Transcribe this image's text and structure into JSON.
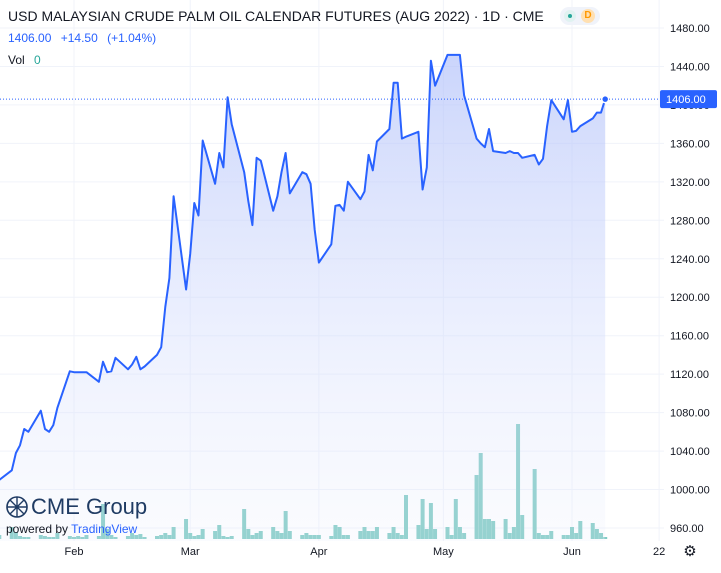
{
  "header": {
    "title": "USD MALAYSIAN CRUDE PALM OIL CALENDAR FUTURES (AUG 2022)",
    "interval": "1D",
    "exchange": "CME",
    "separator": "·",
    "market_status_badge": "D"
  },
  "quote": {
    "last": "1406.00",
    "change": "+14.50",
    "change_pct": "(+1.04%)"
  },
  "volume_legend": {
    "label": "Vol",
    "value": "0"
  },
  "price_tag": "1406.00",
  "branding": {
    "logo": "CME Group",
    "powered_by": "powered by",
    "platform": "TradingView"
  },
  "colors": {
    "line": "#2962ff",
    "area_top": "#aebefa",
    "volume": "#80cbc4",
    "price_tag_bg": "#2962ff",
    "grid": "#f0f3fa",
    "change": "#2962ff",
    "badge": "#ff9800"
  },
  "icons": {
    "settings": "gear-icon",
    "market_open": "dot-icon",
    "logo_mark": "cme-globe-icon"
  },
  "chart_data": {
    "type": "area",
    "title": "USD MALAYSIAN CRUDE PALM OIL CALENDAR FUTURES (AUG 2022)",
    "xlabel": "",
    "ylabel": "",
    "ylim": [
      945,
      1505
    ],
    "y_ticks": [
      "1480.00",
      "1440.00",
      "1400.00",
      "1360.00",
      "1320.00",
      "1280.00",
      "1240.00",
      "1200.00",
      "1160.00",
      "1120.00",
      "1080.00",
      "1040.00",
      "1000.00",
      "960.00"
    ],
    "y_tick_values": [
      1480,
      1440,
      1400,
      1360,
      1320,
      1280,
      1240,
      1200,
      1160,
      1120,
      1080,
      1040,
      1000,
      960
    ],
    "x_ticks": [
      "Feb",
      "Mar",
      "Apr",
      "May",
      "Jun",
      "22"
    ],
    "x_tick_dates": [
      "2022-02-01",
      "2022-03-01",
      "2022-04-01",
      "2022-05-01",
      "2022-06-01",
      "2022-06-22"
    ],
    "x_range": [
      "2022-01-13",
      "2022-06-24"
    ],
    "current_price": 1406.0,
    "grid": true,
    "series": [
      {
        "values": [
          [
            "2022-01-13",
            1015
          ],
          [
            "2022-01-14",
            1010
          ],
          [
            "2022-01-17",
            1020
          ],
          [
            "2022-01-18",
            1038
          ],
          [
            "2022-01-19",
            1046
          ],
          [
            "2022-01-20",
            1063
          ],
          [
            "2022-01-21",
            1060
          ],
          [
            "2022-01-24",
            1082
          ],
          [
            "2022-01-25",
            1063
          ],
          [
            "2022-01-26",
            1060
          ],
          [
            "2022-01-27",
            1067
          ],
          [
            "2022-01-28",
            1085
          ],
          [
            "2022-01-31",
            1123
          ],
          [
            "2022-02-01",
            1122
          ],
          [
            "2022-02-02",
            1122
          ],
          [
            "2022-02-03",
            1122
          ],
          [
            "2022-02-04",
            1122
          ],
          [
            "2022-02-07",
            1112
          ],
          [
            "2022-02-08",
            1133
          ],
          [
            "2022-02-09",
            1122
          ],
          [
            "2022-02-10",
            1123
          ],
          [
            "2022-02-11",
            1137
          ],
          [
            "2022-02-14",
            1125
          ],
          [
            "2022-02-15",
            1130
          ],
          [
            "2022-02-16",
            1138
          ],
          [
            "2022-02-17",
            1125
          ],
          [
            "2022-02-18",
            1128
          ],
          [
            "2022-02-21",
            1140
          ],
          [
            "2022-02-22",
            1148
          ],
          [
            "2022-02-23",
            1190
          ],
          [
            "2022-02-24",
            1220
          ],
          [
            "2022-02-25",
            1305
          ],
          [
            "2022-02-28",
            1208
          ],
          [
            "2022-03-01",
            1245
          ],
          [
            "2022-03-02",
            1298
          ],
          [
            "2022-03-03",
            1285
          ],
          [
            "2022-03-04",
            1363
          ],
          [
            "2022-03-07",
            1318
          ],
          [
            "2022-03-08",
            1350
          ],
          [
            "2022-03-09",
            1335
          ],
          [
            "2022-03-10",
            1408
          ],
          [
            "2022-03-11",
            1380
          ],
          [
            "2022-03-14",
            1330
          ],
          [
            "2022-03-15",
            1300
          ],
          [
            "2022-03-16",
            1275
          ],
          [
            "2022-03-17",
            1345
          ],
          [
            "2022-03-18",
            1342
          ],
          [
            "2022-03-21",
            1290
          ],
          [
            "2022-03-22",
            1305
          ],
          [
            "2022-03-23",
            1330
          ],
          [
            "2022-03-24",
            1350
          ],
          [
            "2022-03-25",
            1308
          ],
          [
            "2022-03-28",
            1330
          ],
          [
            "2022-03-29",
            1328
          ],
          [
            "2022-03-30",
            1318
          ],
          [
            "2022-03-31",
            1270
          ],
          [
            "2022-04-01",
            1236
          ],
          [
            "2022-04-04",
            1255
          ],
          [
            "2022-04-05",
            1295
          ],
          [
            "2022-04-06",
            1296
          ],
          [
            "2022-04-07",
            1290
          ],
          [
            "2022-04-08",
            1320
          ],
          [
            "2022-04-11",
            1302
          ],
          [
            "2022-04-12",
            1310
          ],
          [
            "2022-04-13",
            1348
          ],
          [
            "2022-04-14",
            1332
          ],
          [
            "2022-04-15",
            1362
          ],
          [
            "2022-04-18",
            1375
          ],
          [
            "2022-04-19",
            1423
          ],
          [
            "2022-04-20",
            1423
          ],
          [
            "2022-04-21",
            1365
          ],
          [
            "2022-04-22",
            1367
          ],
          [
            "2022-04-25",
            1372
          ],
          [
            "2022-04-26",
            1312
          ],
          [
            "2022-04-27",
            1335
          ],
          [
            "2022-04-28",
            1446
          ],
          [
            "2022-04-29",
            1420
          ],
          [
            "2022-05-02",
            1452
          ],
          [
            "2022-05-03",
            1452
          ],
          [
            "2022-05-04",
            1452
          ],
          [
            "2022-05-05",
            1452
          ],
          [
            "2022-05-06",
            1410
          ],
          [
            "2022-05-09",
            1365
          ],
          [
            "2022-05-10",
            1360
          ],
          [
            "2022-05-11",
            1356
          ],
          [
            "2022-05-12",
            1375
          ],
          [
            "2022-05-13",
            1352
          ],
          [
            "2022-05-16",
            1350
          ],
          [
            "2022-05-17",
            1352
          ],
          [
            "2022-05-18",
            1350
          ],
          [
            "2022-05-19",
            1350
          ],
          [
            "2022-05-20",
            1345
          ],
          [
            "2022-05-23",
            1348
          ],
          [
            "2022-05-24",
            1338
          ],
          [
            "2022-05-25",
            1344
          ],
          [
            "2022-05-26",
            1378
          ],
          [
            "2022-05-27",
            1405
          ],
          [
            "2022-05-30",
            1385
          ],
          [
            "2022-05-31",
            1405
          ],
          [
            "2022-06-01",
            1372
          ],
          [
            "2022-06-02",
            1373
          ],
          [
            "2022-06-03",
            1378
          ],
          [
            "2022-06-06",
            1386
          ],
          [
            "2022-06-07",
            1392
          ],
          [
            "2022-06-08",
            1392
          ],
          [
            "2022-06-09",
            1406
          ]
        ]
      }
    ],
    "volume": {
      "values": [
        [
          "2022-01-13",
          8
        ],
        [
          "2022-01-14",
          4
        ],
        [
          "2022-01-17",
          12
        ],
        [
          "2022-01-18",
          7
        ],
        [
          "2022-01-19",
          3
        ],
        [
          "2022-01-20",
          2
        ],
        [
          "2022-01-21",
          2
        ],
        [
          "2022-01-24",
          4
        ],
        [
          "2022-01-25",
          3
        ],
        [
          "2022-01-26",
          2
        ],
        [
          "2022-01-27",
          2
        ],
        [
          "2022-01-28",
          6
        ],
        [
          "2022-01-31",
          3
        ],
        [
          "2022-02-01",
          2
        ],
        [
          "2022-02-02",
          3
        ],
        [
          "2022-02-03",
          2
        ],
        [
          "2022-02-04",
          4
        ],
        [
          "2022-02-07",
          3
        ],
        [
          "2022-02-08",
          35
        ],
        [
          "2022-02-09",
          10
        ],
        [
          "2022-02-10",
          4
        ],
        [
          "2022-02-11",
          2
        ],
        [
          "2022-02-14",
          3
        ],
        [
          "2022-02-15",
          6
        ],
        [
          "2022-02-16",
          4
        ],
        [
          "2022-02-17",
          5
        ],
        [
          "2022-02-18",
          2
        ],
        [
          "2022-02-21",
          3
        ],
        [
          "2022-02-22",
          4
        ],
        [
          "2022-02-23",
          6
        ],
        [
          "2022-02-24",
          4
        ],
        [
          "2022-02-25",
          12
        ],
        [
          "2022-02-28",
          20
        ],
        [
          "2022-03-01",
          6
        ],
        [
          "2022-03-02",
          3
        ],
        [
          "2022-03-03",
          4
        ],
        [
          "2022-03-04",
          10
        ],
        [
          "2022-03-07",
          8
        ],
        [
          "2022-03-08",
          14
        ],
        [
          "2022-03-09",
          3
        ],
        [
          "2022-03-10",
          2
        ],
        [
          "2022-03-11",
          3
        ],
        [
          "2022-03-14",
          30
        ],
        [
          "2022-03-15",
          10
        ],
        [
          "2022-03-16",
          4
        ],
        [
          "2022-03-17",
          6
        ],
        [
          "2022-03-18",
          8
        ],
        [
          "2022-03-21",
          12
        ],
        [
          "2022-03-22",
          8
        ],
        [
          "2022-03-23",
          6
        ],
        [
          "2022-03-24",
          28
        ],
        [
          "2022-03-25",
          8
        ],
        [
          "2022-03-28",
          4
        ],
        [
          "2022-03-29",
          6
        ],
        [
          "2022-03-30",
          4
        ],
        [
          "2022-03-31",
          4
        ],
        [
          "2022-04-01",
          4
        ],
        [
          "2022-04-04",
          3
        ],
        [
          "2022-04-05",
          14
        ],
        [
          "2022-04-06",
          12
        ],
        [
          "2022-04-07",
          4
        ],
        [
          "2022-04-08",
          4
        ],
        [
          "2022-04-11",
          8
        ],
        [
          "2022-04-12",
          12
        ],
        [
          "2022-04-13",
          8
        ],
        [
          "2022-04-14",
          8
        ],
        [
          "2022-04-15",
          12
        ],
        [
          "2022-04-18",
          6
        ],
        [
          "2022-04-19",
          12
        ],
        [
          "2022-04-20",
          6
        ],
        [
          "2022-04-21",
          4
        ],
        [
          "2022-04-22",
          44
        ],
        [
          "2022-04-25",
          14
        ],
        [
          "2022-04-26",
          40
        ],
        [
          "2022-04-27",
          10
        ],
        [
          "2022-04-28",
          36
        ],
        [
          "2022-04-29",
          10
        ],
        [
          "2022-05-02",
          12
        ],
        [
          "2022-05-03",
          4
        ],
        [
          "2022-05-04",
          40
        ],
        [
          "2022-05-05",
          12
        ],
        [
          "2022-05-06",
          6
        ],
        [
          "2022-05-09",
          64
        ],
        [
          "2022-05-10",
          86
        ],
        [
          "2022-05-11",
          20
        ],
        [
          "2022-05-12",
          20
        ],
        [
          "2022-05-13",
          18
        ],
        [
          "2022-05-16",
          20
        ],
        [
          "2022-05-17",
          6
        ],
        [
          "2022-05-18",
          12
        ],
        [
          "2022-05-19",
          115
        ],
        [
          "2022-05-20",
          24
        ],
        [
          "2022-05-23",
          70
        ],
        [
          "2022-05-24",
          6
        ],
        [
          "2022-05-25",
          4
        ],
        [
          "2022-05-26",
          4
        ],
        [
          "2022-05-27",
          8
        ],
        [
          "2022-05-30",
          4
        ],
        [
          "2022-05-31",
          4
        ],
        [
          "2022-06-01",
          12
        ],
        [
          "2022-06-02",
          6
        ],
        [
          "2022-06-03",
          18
        ],
        [
          "2022-06-06",
          16
        ],
        [
          "2022-06-07",
          10
        ],
        [
          "2022-06-08",
          6
        ],
        [
          "2022-06-09",
          2
        ]
      ],
      "max": 160
    }
  }
}
